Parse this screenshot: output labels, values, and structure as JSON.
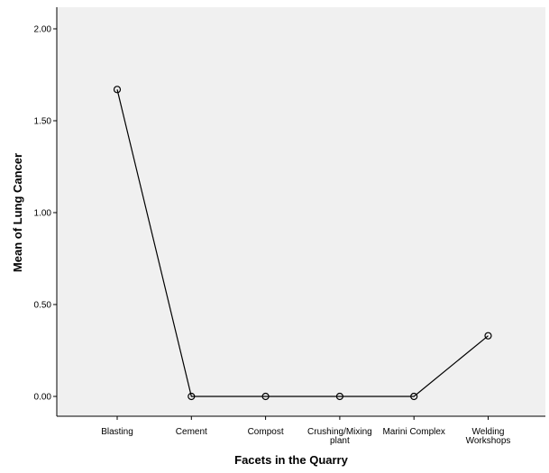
{
  "chart_data": {
    "type": "line",
    "title": "",
    "xlabel": "Facets in the Quarry",
    "ylabel": "Mean of Lung Cancer",
    "categories": [
      [
        "Blasting"
      ],
      [
        "Cement"
      ],
      [
        "Compost"
      ],
      [
        "Crushing/Mixing",
        "plant"
      ],
      [
        "Marini Complex"
      ],
      [
        "Welding",
        "Workshops"
      ]
    ],
    "series": [
      {
        "values": [
          1.67,
          0.0,
          0.0,
          0.0,
          0.0,
          0.33
        ]
      }
    ],
    "ylim": [
      0,
      2.0
    ],
    "yticks": [
      "0.00",
      "0.50",
      "1.00",
      "1.50",
      "2.00"
    ],
    "grid": false,
    "colors": {
      "plot_background": "#f0f0f0",
      "line": "#000000"
    }
  }
}
